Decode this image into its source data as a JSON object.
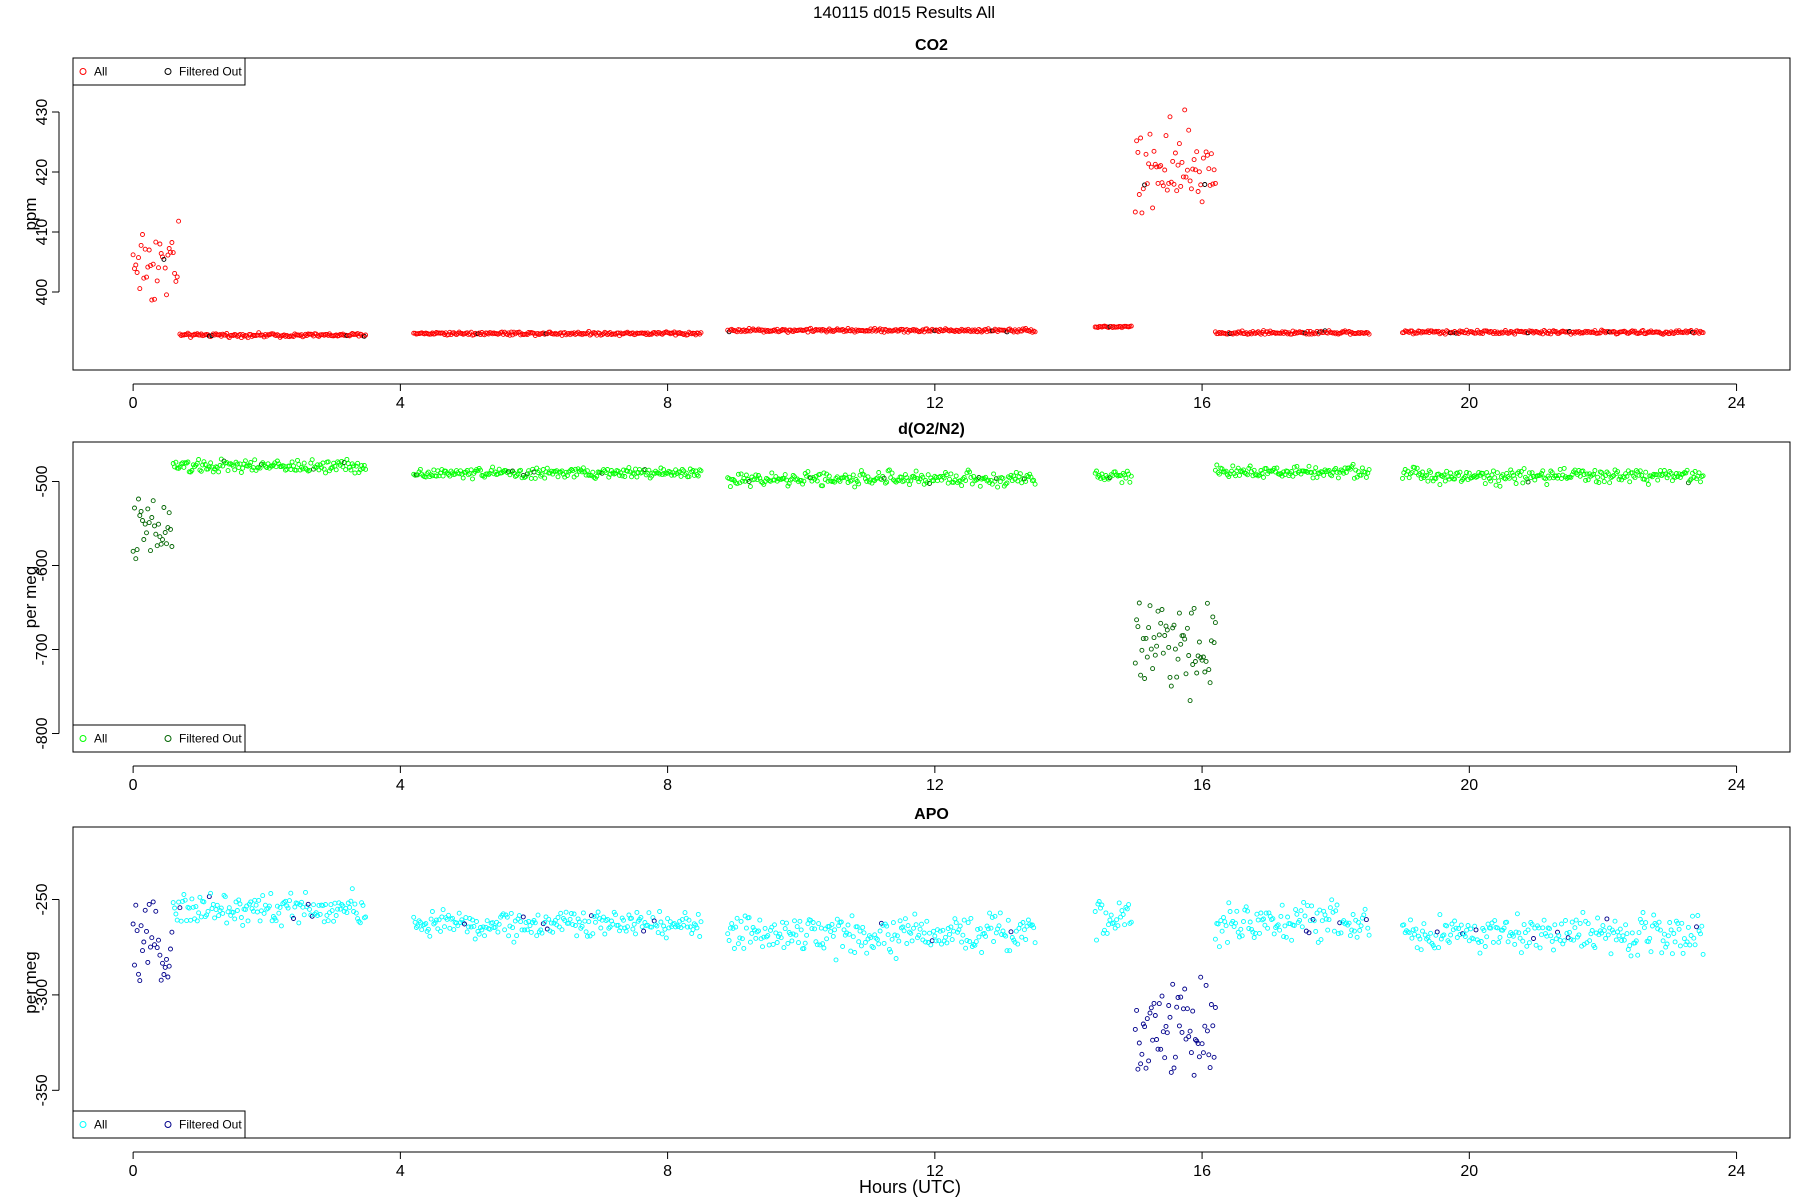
{
  "figure": {
    "title": "140115   d015   Results All",
    "xlabel": "Hours (UTC)"
  },
  "chart_data": [
    {
      "type": "scatter",
      "title": "CO2",
      "xlabel": "",
      "ylabel": "ppm",
      "xlim": [
        -0.9,
        24.8
      ],
      "ylim": [
        387,
        439
      ],
      "xticks": [
        "0",
        "4",
        "8",
        "12",
        "16",
        "20",
        "24"
      ],
      "yticks": [
        "400",
        "410",
        "420",
        "430"
      ],
      "legend": {
        "position": "top-left",
        "entries": [
          "All",
          "Filtered Out"
        ]
      },
      "colors": {
        "all": "#ff0000",
        "filtered": "#000000"
      },
      "segments": [
        {
          "x_start": 0.0,
          "x_end": 0.7,
          "base": 405,
          "noise": 7
        },
        {
          "x_start": 0.7,
          "x_end": 3.5,
          "base": 392.8,
          "noise": 0.3
        },
        {
          "x_start": 4.2,
          "x_end": 8.5,
          "base": 393.1,
          "noise": 0.3
        },
        {
          "x_start": 8.9,
          "x_end": 13.5,
          "base": 393.6,
          "noise": 0.3
        },
        {
          "x_start": 14.4,
          "x_end": 14.95,
          "base": 394.2,
          "noise": 0.2
        },
        {
          "x_start": 15.0,
          "x_end": 16.2,
          "base": 420,
          "noise": 8
        },
        {
          "x_start": 16.2,
          "x_end": 18.5,
          "base": 393.2,
          "noise": 0.3
        },
        {
          "x_start": 19.0,
          "x_end": 23.5,
          "base": 393.3,
          "noise": 0.3
        }
      ],
      "series": [
        {
          "name": "All",
          "marker": "circle"
        },
        {
          "name": "Filtered Out",
          "marker": "circle"
        }
      ]
    },
    {
      "type": "scatter",
      "title": "d(O2/N2)",
      "xlabel": "",
      "ylabel": "per meg",
      "xlim": [
        -0.9,
        24.8
      ],
      "ylim": [
        -822,
        -453
      ],
      "xticks": [
        "0",
        "4",
        "8",
        "12",
        "16",
        "20",
        "24"
      ],
      "yticks": [
        "-800",
        "-700",
        "-600",
        "-500"
      ],
      "legend": {
        "position": "bottom-left",
        "entries": [
          "All",
          "Filtered Out"
        ]
      },
      "colors": {
        "all": "#00ff00",
        "filtered": "#006400"
      },
      "segments": [
        {
          "x_start": 0.0,
          "x_end": 0.6,
          "base": -560,
          "noise": 40
        },
        {
          "x_start": 0.6,
          "x_end": 3.5,
          "base": -482,
          "noise": 8
        },
        {
          "x_start": 4.2,
          "x_end": 8.5,
          "base": -490,
          "noise": 6
        },
        {
          "x_start": 8.9,
          "x_end": 13.5,
          "base": -497,
          "noise": 8
        },
        {
          "x_start": 14.4,
          "x_end": 14.95,
          "base": -493,
          "noise": 8
        },
        {
          "x_start": 15.0,
          "x_end": 16.2,
          "base": -690,
          "noise": 55
        },
        {
          "x_start": 16.2,
          "x_end": 18.5,
          "base": -488,
          "noise": 7
        },
        {
          "x_start": 19.0,
          "x_end": 23.5,
          "base": -493,
          "noise": 9
        }
      ],
      "series": [
        {
          "name": "All",
          "marker": "circle"
        },
        {
          "name": "Filtered Out",
          "marker": "circle"
        }
      ]
    },
    {
      "type": "scatter",
      "title": "APO",
      "xlabel": "Hours (UTC)",
      "ylabel": "per meg",
      "xlim": [
        -0.9,
        24.8
      ],
      "ylim": [
        -375,
        -212
      ],
      "xticks": [
        "0",
        "4",
        "8",
        "12",
        "16",
        "20",
        "24"
      ],
      "yticks": [
        "-350",
        "-300",
        "-250"
      ],
      "legend": {
        "position": "bottom-left",
        "entries": [
          "All",
          "Filtered Out"
        ]
      },
      "colors": {
        "all": "#00ffff",
        "filtered": "#00008b"
      },
      "segments": [
        {
          "x_start": 0.0,
          "x_end": 0.6,
          "base": -275,
          "noise": 18
        },
        {
          "x_start": 0.6,
          "x_end": 3.5,
          "base": -255,
          "noise": 8
        },
        {
          "x_start": 4.2,
          "x_end": 8.5,
          "base": -263,
          "noise": 7
        },
        {
          "x_start": 8.9,
          "x_end": 13.5,
          "base": -268,
          "noise": 10
        },
        {
          "x_start": 14.4,
          "x_end": 14.95,
          "base": -260,
          "noise": 10
        },
        {
          "x_start": 15.0,
          "x_end": 16.2,
          "base": -320,
          "noise": 25
        },
        {
          "x_start": 16.2,
          "x_end": 18.5,
          "base": -262,
          "noise": 9
        },
        {
          "x_start": 19.0,
          "x_end": 23.5,
          "base": -268,
          "noise": 10
        }
      ],
      "series": [
        {
          "name": "All",
          "marker": "circle"
        },
        {
          "name": "Filtered Out",
          "marker": "circle"
        }
      ]
    }
  ]
}
